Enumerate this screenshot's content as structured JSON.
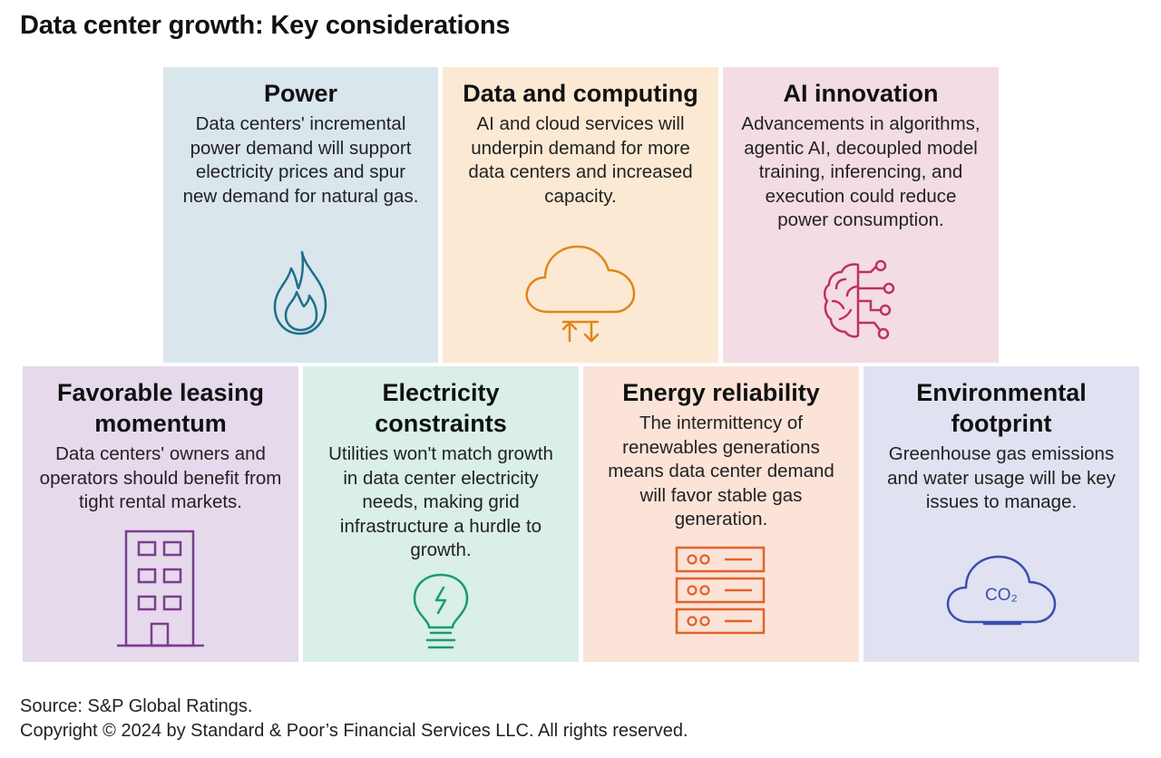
{
  "title": "Data center growth: Key considerations",
  "cards": [
    {
      "id": "power",
      "heading": "Power",
      "text": "Data centers' incremental power demand will support electricity prices and spur new demand for natural gas.",
      "icon": "flame-icon",
      "bg": "#d9e6ec",
      "icon_color": "#1f6f8b"
    },
    {
      "id": "data-computing",
      "heading": "Data and computing",
      "text": "AI and cloud services will underpin demand for more data centers and increased capacity.",
      "icon": "cloud-transfer-icon",
      "bg": "#fce9d4",
      "icon_color": "#e0861c"
    },
    {
      "id": "ai-innovation",
      "heading": "AI innovation",
      "text": "Advancements in algorithms, agentic AI, decoupled model training, inferencing, and execution could reduce power consumption.",
      "icon": "brain-circuit-icon",
      "bg": "#f3dce4",
      "icon_color": "#c0305e"
    },
    {
      "id": "leasing",
      "heading": "Favorable leasing momentum",
      "text": "Data centers' owners and operators should benefit from tight rental markets.",
      "icon": "building-icon",
      "bg": "#e6d9ec",
      "icon_color": "#7a3d8f"
    },
    {
      "id": "electricity",
      "heading": "Electricity constraints",
      "text": "Utilities won't match growth in data center electricity needs, making grid infrastructure a hurdle to growth.",
      "icon": "lightbulb-icon",
      "bg": "#d9efe8",
      "icon_color": "#1a9b72"
    },
    {
      "id": "reliability",
      "heading": "Energy reliability",
      "text": "The intermittency of renewables generations means data center demand will favor stable gas generation.",
      "icon": "server-rack-icon",
      "bg": "#fbe3d8",
      "icon_color": "#e2622b"
    },
    {
      "id": "environment",
      "heading": "Environmental footprint",
      "text": "Greenhouse gas emissions and water usage will be key issues to manage.",
      "icon": "co2-cloud-icon",
      "icon_label": "CO₂",
      "bg": "#e0e2f1",
      "icon_color": "#3a4fb0"
    }
  ],
  "source": "Source: S&P Global Ratings.",
  "copyright": "Copyright © 2024 by Standard & Poor’s Financial Services LLC. All rights reserved."
}
